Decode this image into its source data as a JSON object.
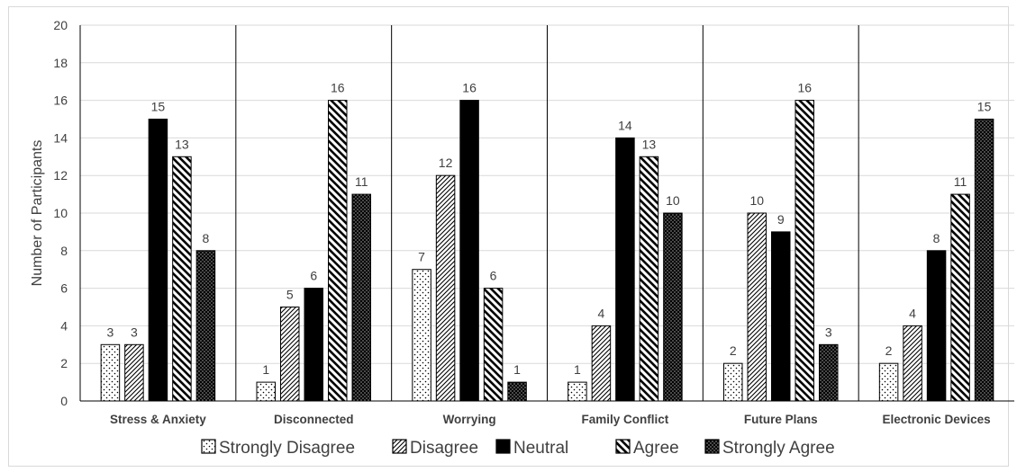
{
  "chart_data": {
    "type": "bar",
    "ylabel": "Number of Participants",
    "ylim": [
      0,
      20
    ],
    "yticks": [
      "0",
      "2",
      "4",
      "6",
      "8",
      "10",
      "12",
      "14",
      "16",
      "18",
      "20"
    ],
    "grid": true,
    "legend_position": "bottom",
    "categories": [
      "Stress & Anxiety",
      "Disconnected",
      "Worrying",
      "Family Conflict",
      "Future Plans",
      "Electronic Devices"
    ],
    "series": [
      {
        "name": "Strongly Disagree",
        "pattern": "sparse-dots",
        "values": [
          3,
          1,
          7,
          1,
          2,
          2
        ]
      },
      {
        "name": "Disagree",
        "pattern": "diagonal-up",
        "values": [
          3,
          5,
          12,
          4,
          10,
          4
        ]
      },
      {
        "name": "Neutral",
        "pattern": "solid",
        "values": [
          15,
          6,
          16,
          14,
          9,
          8
        ]
      },
      {
        "name": "Agree",
        "pattern": "diagonal-down",
        "values": [
          13,
          16,
          6,
          13,
          16,
          11
        ]
      },
      {
        "name": "Strongly Agree",
        "pattern": "dense-dots",
        "values": [
          8,
          11,
          1,
          10,
          3,
          15
        ]
      }
    ],
    "colors": {
      "axis": "#000000",
      "grid": "#d9d9d9",
      "text": "#404040",
      "bar_fill": "#000000"
    }
  }
}
